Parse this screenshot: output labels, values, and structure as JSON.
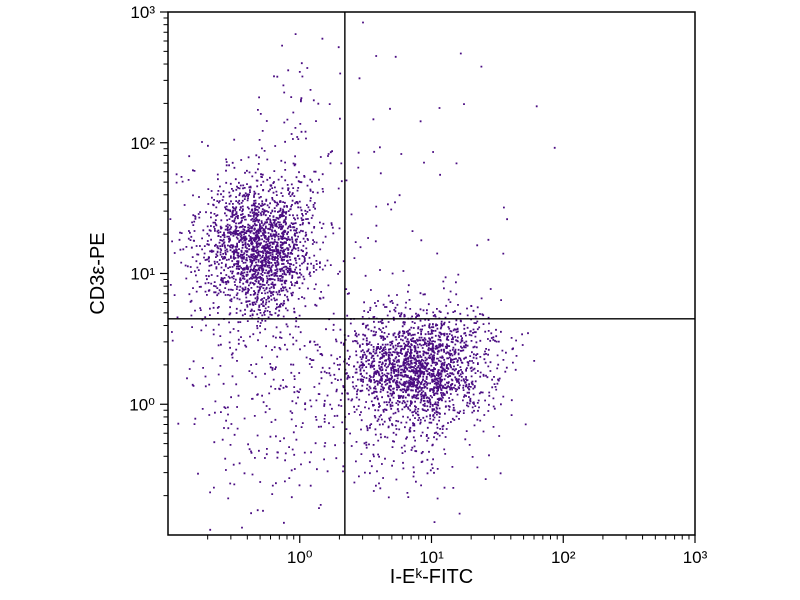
{
  "chart_data": {
    "type": "scatter",
    "title": "",
    "xlabel": "I-Eᵏ-FITC",
    "ylabel": "CD3ε-PE",
    "x_scale": "log",
    "y_scale": "log",
    "x_range": [
      0.1,
      1000
    ],
    "y_range": [
      0.1,
      1000
    ],
    "x_ticks": [
      {
        "value": 1,
        "label": "10⁰"
      },
      {
        "value": 10,
        "label": "10¹"
      },
      {
        "value": 100,
        "label": "10²"
      },
      {
        "value": 1000,
        "label": "10³"
      }
    ],
    "y_ticks": [
      {
        "value": 1,
        "label": "10⁰"
      },
      {
        "value": 10,
        "label": "10¹"
      },
      {
        "value": 100,
        "label": "10²"
      },
      {
        "value": 1000,
        "label": "10³"
      }
    ],
    "grid": false,
    "legend": null,
    "point_color": "#4a0c82",
    "axis_color": "#000000",
    "quadrant_gates": {
      "x": 2.2,
      "y": 4.5
    },
    "populations": [
      {
        "name": "CD3-positive I-Ek-negative (upper-left cluster)",
        "center": [
          0.5,
          15
        ],
        "sigma": [
          0.2,
          0.26
        ],
        "count": 1850
      },
      {
        "name": "I-Ek-positive CD3-negative (lower-right cluster)",
        "center": [
          8,
          1.9
        ],
        "sigma": [
          0.27,
          0.22
        ],
        "count": 1950
      },
      {
        "name": "lower-left scatter",
        "center": [
          0.55,
          1.4
        ],
        "sigma": [
          0.38,
          0.5
        ],
        "count": 300
      },
      {
        "name": "upper-left high tail",
        "center": [
          1.0,
          70
        ],
        "sigma": [
          0.17,
          0.5
        ],
        "count": 80
      },
      {
        "name": "lower-right low tail",
        "center": [
          7,
          0.5
        ],
        "sigma": [
          0.3,
          0.28
        ],
        "count": 150
      },
      {
        "name": "gate-line column",
        "center": [
          3,
          80
        ],
        "sigma": [
          0.2,
          0.75
        ],
        "count": 45
      },
      {
        "name": "upper-right sparse",
        "center": [
          15,
          25
        ],
        "sigma": [
          0.5,
          0.6
        ],
        "count": 35
      },
      {
        "name": "left-edge spill",
        "center": [
          0.16,
          16
        ],
        "sigma": [
          0.12,
          0.35
        ],
        "count": 60
      }
    ]
  }
}
